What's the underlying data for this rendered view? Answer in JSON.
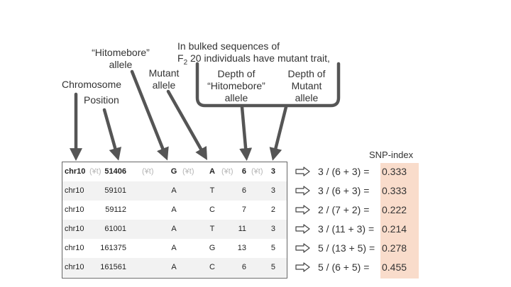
{
  "labels": {
    "chromosome": "Chromosome",
    "position": "Position",
    "hitomebore_allele_line1": "“Hitomebore”",
    "hitomebore_allele_line2": "allele",
    "mutant_allele_line1": "Mutant",
    "mutant_allele_line2": "allele",
    "bulked_line1": "In bulked sequences of",
    "bulked_line2_prefix": "F",
    "bulked_line2_sub": "2",
    "bulked_line2_rest": " 20 individuals have mutant trait,",
    "depth_ref_line1": "Depth of",
    "depth_ref_line2": "“Hitomebore”",
    "depth_ref_line3": "allele",
    "depth_mut_line1": "Depth of",
    "depth_mut_line2": "Mutant",
    "depth_mut_line3": "allele",
    "snp_index_header": "SNP-index"
  },
  "tab_marker": "(¥t)",
  "rows": [
    {
      "chr": "chr10",
      "pos": "51406",
      "ref": "G",
      "mut": "A",
      "depth_ref": "6",
      "depth_mut": "3",
      "calc": "3 / (6 + 3)  =",
      "snp_index": "0.333"
    },
    {
      "chr": "chr10",
      "pos": "59101",
      "ref": "A",
      "mut": "T",
      "depth_ref": "6",
      "depth_mut": "3",
      "calc": "3 / (6 + 3)  =",
      "snp_index": "0.333"
    },
    {
      "chr": "chr10",
      "pos": "59112",
      "ref": "A",
      "mut": "C",
      "depth_ref": "7",
      "depth_mut": "2",
      "calc": "2 / (7 + 2)  =",
      "snp_index": "0.222"
    },
    {
      "chr": "chr10",
      "pos": "61001",
      "ref": "A",
      "mut": "T",
      "depth_ref": "11",
      "depth_mut": "3",
      "calc": "3 / (11 + 3) =",
      "snp_index": "0.214"
    },
    {
      "chr": "chr10",
      "pos": "161375",
      "ref": "A",
      "mut": "G",
      "depth_ref": "13",
      "depth_mut": "5",
      "calc": "5 / (13 + 5) =",
      "snp_index": "0.278"
    },
    {
      "chr": "chr10",
      "pos": "161561",
      "ref": "A",
      "mut": "C",
      "depth_ref": "6",
      "depth_mut": "5",
      "calc": "5 / (6 + 5)   =",
      "snp_index": "0.455"
    }
  ],
  "colors": {
    "snp_highlight": "#f9dccb",
    "arrow": "#555555",
    "table_border": "#666666"
  },
  "icons": {
    "implies": "implies-arrow-icon"
  }
}
